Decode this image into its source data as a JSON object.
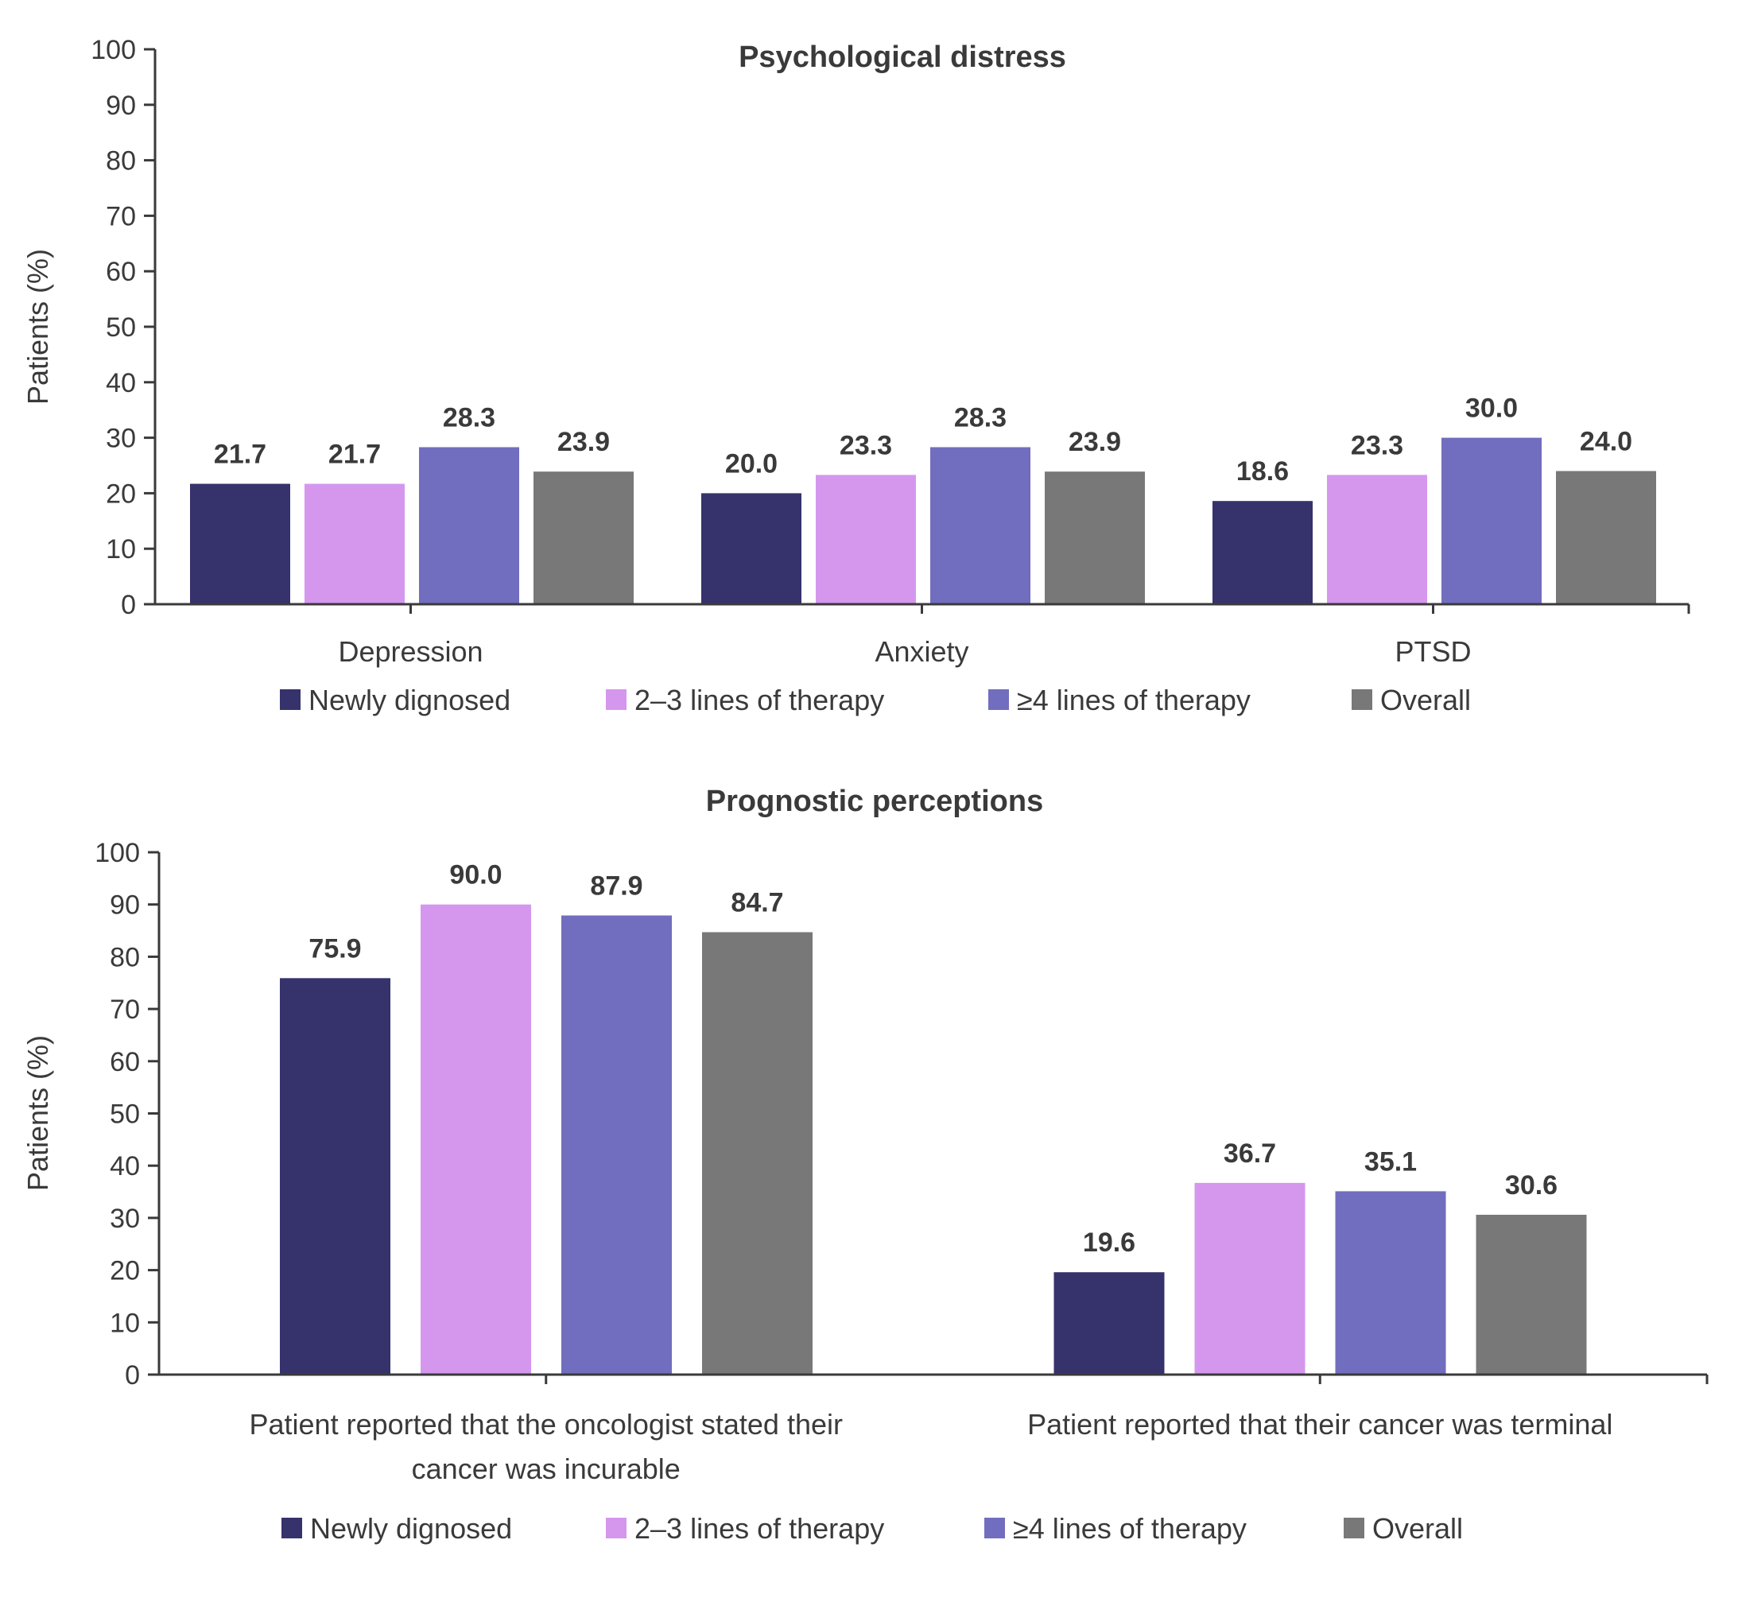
{
  "chart_data": [
    {
      "type": "bar",
      "title": "Psychological distress",
      "xlabel": "",
      "ylabel": "Patients (%)",
      "ylim": [
        0,
        100
      ],
      "yticks": [
        0,
        10,
        20,
        30,
        40,
        50,
        60,
        70,
        80,
        90,
        100
      ],
      "grid": false,
      "legend_position": "bottom",
      "categories": [
        "Depression",
        "Anxiety",
        "PTSD"
      ],
      "series": [
        {
          "name": "Newly dignosed",
          "color": "#36326c",
          "values": [
            21.7,
            20.0,
            18.6
          ],
          "labels": [
            "21.7",
            "20.0",
            "18.6"
          ]
        },
        {
          "name": "2–3 lines of therapy",
          "color": "#d597ee",
          "values": [
            21.7,
            23.3,
            23.3
          ],
          "labels": [
            "21.7",
            "23.3",
            "23.3"
          ]
        },
        {
          "name": "≥4 lines of therapy",
          "color": "#716dbf",
          "values": [
            28.3,
            28.3,
            30.0
          ],
          "labels": [
            "28.3",
            "28.3",
            "30.0"
          ]
        },
        {
          "name": "Overall",
          "color": "#787878",
          "values": [
            23.9,
            23.9,
            24.0
          ],
          "labels": [
            "23.9",
            "23.9",
            "24.0"
          ]
        }
      ]
    },
    {
      "type": "bar",
      "title": "Prognostic perceptions",
      "xlabel": "",
      "ylabel": "Patients (%)",
      "ylim": [
        0,
        100
      ],
      "yticks": [
        0,
        10,
        20,
        30,
        40,
        50,
        60,
        70,
        80,
        90,
        100
      ],
      "grid": false,
      "legend_position": "bottom",
      "categories": [
        [
          "Patient reported that the oncologist stated their",
          "cancer was incurable"
        ],
        [
          "Patient reported that their cancer was terminal"
        ]
      ],
      "series": [
        {
          "name": "Newly dignosed",
          "color": "#36326c",
          "values": [
            75.9,
            19.6
          ],
          "labels": [
            "75.9",
            "19.6"
          ]
        },
        {
          "name": "2–3 lines of therapy",
          "color": "#d597ee",
          "values": [
            90.0,
            36.7
          ],
          "labels": [
            "90.0",
            "36.7"
          ]
        },
        {
          "name": "≥4 lines of therapy",
          "color": "#716dbf",
          "values": [
            87.9,
            35.1
          ],
          "labels": [
            "87.9",
            "35.1"
          ]
        },
        {
          "name": "Overall",
          "color": "#787878",
          "values": [
            84.7,
            30.6
          ],
          "labels": [
            "84.7",
            "30.6"
          ]
        }
      ]
    }
  ]
}
